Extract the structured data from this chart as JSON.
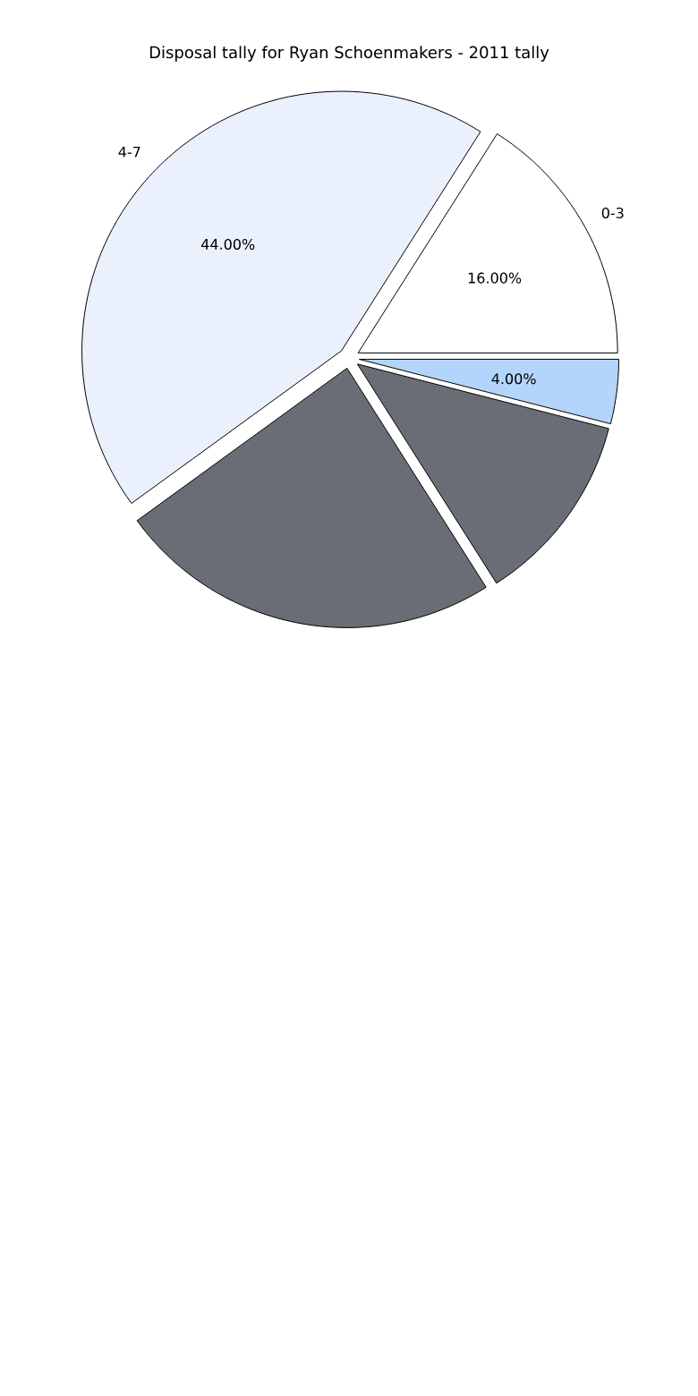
{
  "chart_data": {
    "type": "pie",
    "title": "Disposal tally for Ryan Schoenmakers - 2011 tally",
    "categories": [
      "0-3",
      "4-7",
      null,
      null,
      null
    ],
    "values": [
      16,
      44,
      24,
      12,
      4
    ],
    "colors": [
      "#ffffff",
      "#eaf1fd",
      "#696d75",
      "#696d75",
      "#b3d5fb"
    ],
    "value_labels": [
      "16.00%",
      "44.00%",
      null,
      null,
      "4.00%"
    ]
  }
}
